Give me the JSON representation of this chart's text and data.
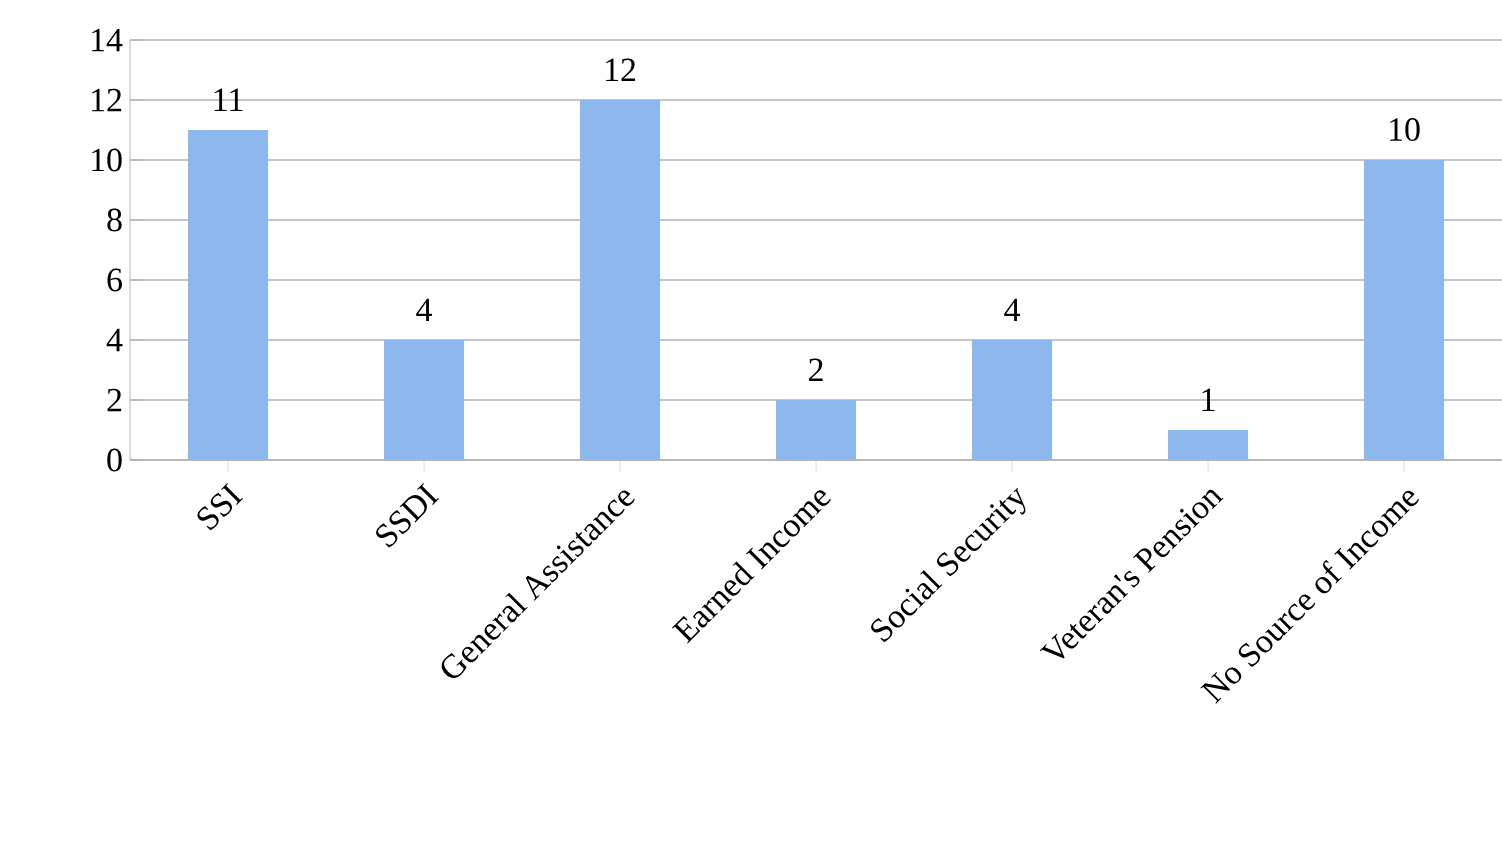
{
  "chart_data": {
    "type": "bar",
    "categories": [
      "SSI",
      "SSDI",
      "General Assistance",
      "Earned Income",
      "Social Security",
      "Veteran's Pension",
      "No Source of Income"
    ],
    "values": [
      11,
      4,
      12,
      2,
      4,
      1,
      10
    ],
    "color": "#8db8ee",
    "ylim": [
      0,
      14
    ],
    "yticks": [
      0,
      2,
      4,
      6,
      8,
      10,
      12,
      14
    ],
    "grid": "y",
    "data_labels": true
  }
}
